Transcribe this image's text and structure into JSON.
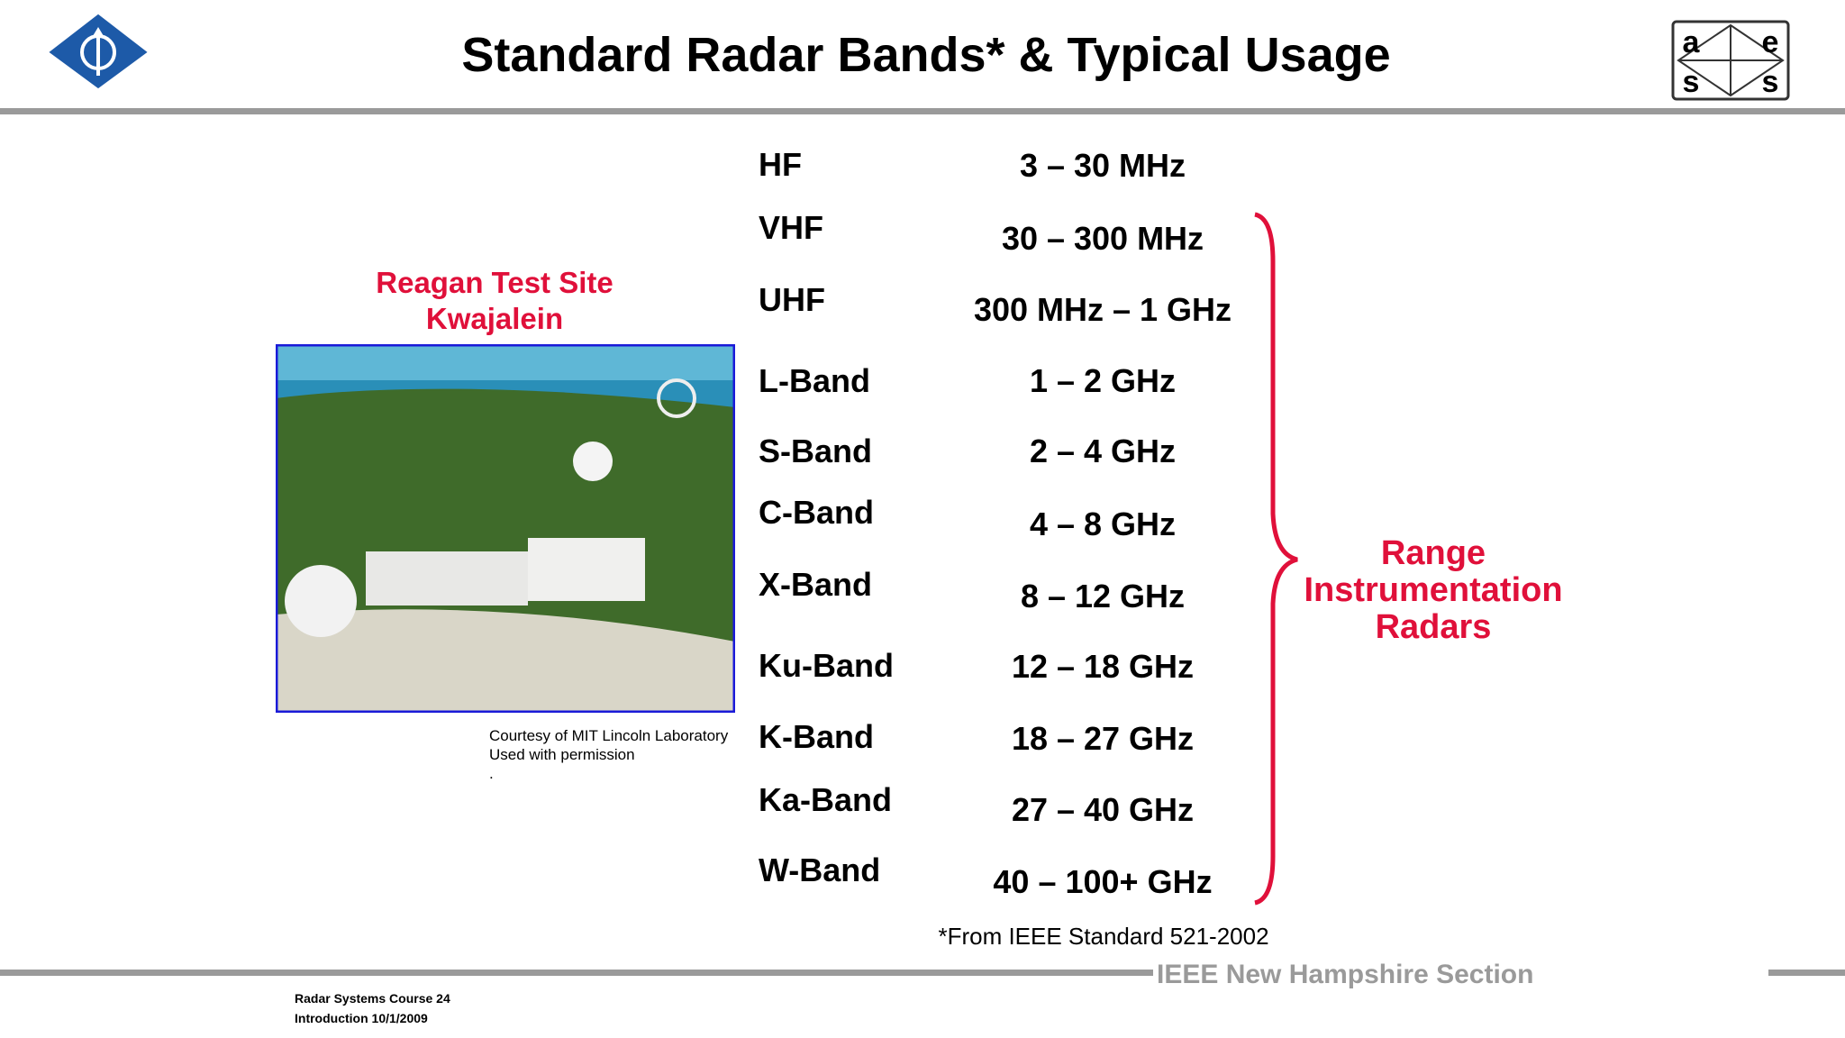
{
  "header": {
    "title": "Standard Radar Bands* & Typical Usage",
    "logo_letters": [
      "a",
      "e",
      "s",
      "s"
    ]
  },
  "photo": {
    "caption": [
      "Reagan Test Site",
      "Kwajalein"
    ],
    "credit": [
      "Courtesy of MIT Lincoln Laboratory",
      "Used with permission",
      "."
    ]
  },
  "bands": [
    {
      "name": "HF",
      "range": "3 – 30 MHz"
    },
    {
      "name": "VHF",
      "range": "30 – 300 MHz"
    },
    {
      "name": "UHF",
      "range": "300 MHz – 1 GHz"
    },
    {
      "name": "L-Band",
      "range": "1 – 2 GHz"
    },
    {
      "name": "S-Band",
      "range": "2 – 4 GHz"
    },
    {
      "name": "C-Band",
      "range": "4 – 8 GHz"
    },
    {
      "name": "X-Band",
      "range": "8 – 12 GHz"
    },
    {
      "name": "Ku-Band",
      "range": "12 – 18 GHz"
    },
    {
      "name": "K-Band",
      "range": "18 – 27 GHz"
    },
    {
      "name": "Ka-Band",
      "range": "27 – 40 GHz"
    },
    {
      "name": "W-Band",
      "range": "40 – 100+ GHz"
    }
  ],
  "bracket_label": [
    "Range",
    "Instrumentation",
    "Radars"
  ],
  "footnote": "*From IEEE Standard 521-2002",
  "footer": {
    "section": "IEEE New Hampshire Section",
    "course": [
      "Radar Systems Course 24",
      "Introduction 10/1/2009"
    ]
  }
}
